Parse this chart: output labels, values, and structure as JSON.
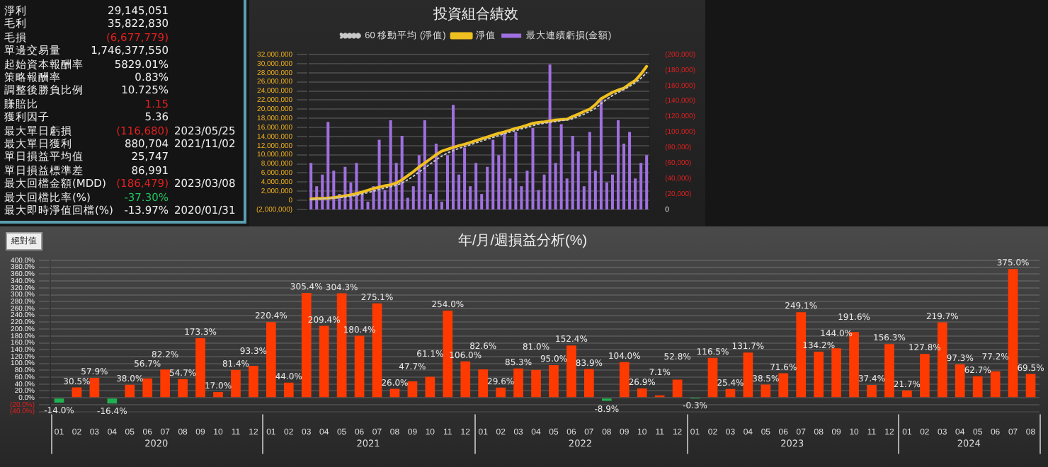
{
  "chart_data": [
    {
      "type": "other",
      "annotations": [
        "淨利 29,145,051",
        "毛利 35,822,830",
        "毛損 (6,677,779)",
        "單邊交易量 1,746,377,550",
        "起始資本報酬率 5829.01%",
        "策略報酬率 0.83%",
        "調整後勝負比例 10.725%",
        "賺賠比 1.15",
        "獲利因子 5.36",
        "最大單日虧損 (116,680) 2023/05/25",
        "最大單日獲利 880,704 2021/11/02",
        "單日損益平均值 25,747",
        "單日損益標準差 86,991",
        "最大回檔金額(MDD) (186,479) 2023/03/08",
        "最大回檔比率(%) -37.30%",
        "最大即時淨值回檔(%) -13.97% 2020/01/31"
      ],
      "colors": [
        "#eeeeee",
        "#eeeeee",
        "#e02020",
        "#eeeeee",
        "#eeeeee",
        "#eeeeee",
        "#eeeeee",
        "#e02020",
        "#eeeeee",
        "#e02020",
        "#eeeeee",
        "#eeeeee",
        "#eeeeee",
        "#e02020",
        "#20c060",
        "#eeeeee"
      ]
    },
    {
      "type": "line",
      "title": "投資組合績效",
      "legend": "top",
      "grid": "y",
      "categories": [
        null,
        null,
        null,
        null,
        null,
        null,
        null,
        null,
        null,
        null,
        null,
        null,
        null,
        null,
        null,
        null,
        null,
        null,
        null,
        null,
        null,
        null,
        null,
        null,
        null,
        null,
        null,
        null,
        null,
        null,
        null,
        null,
        null,
        null,
        null,
        null,
        null,
        null,
        null,
        null,
        null,
        null,
        null,
        null,
        null,
        null,
        null,
        null,
        null,
        null,
        null,
        null,
        null,
        null,
        null,
        null,
        null,
        null,
        null,
        null
      ],
      "series": [
        {
          "name": "最大連續虧損(金額)",
          "type": "bar",
          "axis": "y2",
          "color": "#a070e0",
          "values": [
            -60000,
            -30000,
            -45000,
            -113000,
            -50000,
            -20000,
            -55000,
            -35000,
            -60000,
            -20000,
            -10000,
            -30000,
            -90000,
            -25000,
            -115000,
            -60000,
            -95000,
            -15000,
            -30000,
            -70000,
            -115000,
            -20000,
            -85000,
            -10000,
            -70000,
            -135000,
            -45000,
            -80000,
            -30000,
            -60000,
            -20000,
            -55000,
            -90000,
            -70000,
            -100000,
            -40000,
            -100000,
            -30000,
            -50000,
            -105000,
            -25000,
            -45000,
            -187000,
            -60000,
            -110000,
            -40000,
            -95000,
            -75000,
            -30000,
            -100000,
            -50000,
            -143000,
            -35000,
            -45000,
            -115000,
            -85000,
            -100000,
            -40000,
            -60000,
            -70000
          ]
        },
        {
          "name": "淨值",
          "type": "line",
          "color": "#f0c020",
          "values": [
            300000,
            400000,
            400000,
            500000,
            600000,
            800000,
            1000000,
            1200000,
            1500000,
            1800000,
            2200000,
            2600000,
            2900000,
            3200000,
            3400000,
            3800000,
            4500000,
            5400000,
            6300000,
            7300000,
            8200000,
            9100000,
            10000000,
            10800000,
            11200000,
            11600000,
            12000000,
            12300000,
            12700000,
            13100000,
            13500000,
            13900000,
            14300000,
            14700000,
            15000000,
            15400000,
            15800000,
            16100000,
            16500000,
            16900000,
            17100000,
            17200000,
            17400000,
            17600000,
            17700000,
            17800000,
            18400000,
            18900000,
            19500000,
            20000000,
            21000000,
            22300000,
            23000000,
            23700000,
            24200000,
            24600000,
            25500000,
            26300000,
            27700000,
            29400000
          ]
        },
        {
          "name": "60 移動平均 (淨值)",
          "type": "line",
          "line_style": "dotted",
          "color": "#c8c8c8",
          "values": [
            200000,
            300000,
            300000,
            400000,
            500000,
            600000,
            700000,
            900000,
            1100000,
            1400000,
            1700000,
            2000000,
            2400000,
            2700000,
            3000000,
            3300000,
            3800000,
            4500000,
            5300000,
            6200000,
            7100000,
            8000000,
            8900000,
            9700000,
            10400000,
            10900000,
            11400000,
            11800000,
            12200000,
            12600000,
            13000000,
            13400000,
            13800000,
            14200000,
            14600000,
            15000000,
            15300000,
            15700000,
            16000000,
            16400000,
            16700000,
            16900000,
            17100000,
            17300000,
            17500000,
            17600000,
            17900000,
            18400000,
            18900000,
            19500000,
            20200000,
            21200000,
            22200000,
            23000000,
            23700000,
            24300000,
            25000000,
            25800000,
            26800000,
            28000000
          ]
        }
      ],
      "ylim": [
        -2000000,
        32000000
      ],
      "yticks": [
        {
          "value": -2000000,
          "label": "(2,000,000)"
        },
        {
          "value": 0,
          "label": "0"
        },
        {
          "value": 2000000,
          "label": "2,000,000"
        },
        {
          "value": 4000000,
          "label": "4,000,000"
        },
        {
          "value": 6000000,
          "label": "6,000,000"
        },
        {
          "value": 8000000,
          "label": "8,000,000"
        },
        {
          "value": 10000000,
          "label": "10,000,000"
        },
        {
          "value": 12000000,
          "label": "12,000,000"
        },
        {
          "value": 14000000,
          "label": "14,000,000"
        },
        {
          "value": 16000000,
          "label": "16,000,000"
        },
        {
          "value": 18000000,
          "label": "18,000,000"
        },
        {
          "value": 20000000,
          "label": "20,000,000"
        },
        {
          "value": 22000000,
          "label": "22,000,000"
        },
        {
          "value": 24000000,
          "label": "24,000,000"
        },
        {
          "value": 26000000,
          "label": "26,000,000"
        },
        {
          "value": 28000000,
          "label": "28,000,000"
        },
        {
          "value": 30000000,
          "label": "30,000,000"
        },
        {
          "value": 32000000,
          "label": "32,000,000"
        }
      ],
      "y2lim": [
        0,
        -200000
      ],
      "y2ticks": [
        0,
        {
          "value": -20000,
          "label": "(20,000)"
        },
        {
          "value": -40000,
          "label": "(40,000)"
        },
        {
          "value": -60000,
          "label": "(60,000)"
        },
        {
          "value": -80000,
          "label": "(80,000)"
        },
        {
          "value": -100000,
          "label": "(100,000)"
        },
        {
          "value": -120000,
          "label": "(120,000)"
        },
        {
          "value": -140000,
          "label": "(140,000)"
        },
        {
          "value": -160000,
          "label": "(160,000)"
        },
        {
          "value": -180000,
          "label": "(180,000)"
        },
        {
          "value": -200000,
          "label": "(200,000)"
        }
      ]
    },
    {
      "type": "bar",
      "title": "年/月/週損益分析(%)",
      "grid": "y",
      "categories": [
        "01",
        "02",
        "03",
        "04",
        "05",
        "06",
        "07",
        "08",
        "09",
        "10",
        "11",
        "12",
        "01",
        "02",
        "03",
        "04",
        "05",
        "06",
        "07",
        "08",
        "09",
        "10",
        "11",
        "12",
        "01",
        "02",
        "03",
        "04",
        "05",
        "06",
        "07",
        "08",
        "09",
        "10",
        "11",
        "12",
        "01",
        "02",
        "03",
        "04",
        "05",
        "06",
        "07",
        "08",
        "09",
        "10",
        "11",
        "12",
        "01",
        "02",
        "03",
        "04",
        "05",
        "06",
        "07",
        "08"
      ],
      "values": [
        -14.0,
        30.5,
        57.9,
        -16.4,
        38.0,
        56.7,
        82.2,
        54.7,
        173.3,
        17.0,
        81.4,
        93.3,
        220.4,
        44.0,
        305.4,
        209.4,
        304.3,
        180.4,
        275.1,
        26.0,
        47.7,
        61.1,
        254.0,
        106.0,
        82.6,
        29.6,
        85.3,
        81.0,
        95.0,
        152.4,
        83.9,
        -8.9,
        104.0,
        26.9,
        7.1,
        52.8,
        -0.3,
        116.5,
        25.4,
        131.7,
        38.5,
        71.6,
        249.1,
        134.2,
        144.0,
        191.6,
        37.4,
        156.3,
        21.7,
        127.8,
        219.7,
        97.3,
        62.7,
        77.2,
        375.0,
        69.5
      ],
      "value_labels": [
        "-14.0%",
        "30.5%",
        "57.9%",
        "-16.4%",
        "38.0%",
        "56.7%",
        "82.2%",
        "54.7%",
        "173.3%",
        "17.0%",
        "81.4%",
        "93.3%",
        "220.4%",
        "44.0%",
        "305.4%",
        "209.4%",
        "304.3%",
        "180.4%",
        "275.1%",
        "26.0%",
        "47.7%",
        "61.1%",
        "254.0%",
        "106.0%",
        "82.6%",
        "29.6%",
        "85.3%",
        "81.0%",
        "95.0%",
        "152.4%",
        "83.9%",
        "-8.9%",
        "104.0%",
        "26.9%",
        "7.1%",
        "52.8%",
        "-0.3%",
        "116.5%",
        "25.4%",
        "131.7%",
        "38.5%",
        "71.6%",
        "249.1%",
        "134.2%",
        "144.0%",
        "191.6%",
        "37.4%",
        "156.3%",
        "21.7%",
        "127.8%",
        "219.7%",
        "97.3%",
        "62.7%",
        "77.2%",
        "375.0%",
        "69.5%"
      ],
      "colors": [
        "#20b050",
        "#ff3a00",
        "#ff3a00",
        "#20b050",
        "#ff3a00",
        "#ff3a00",
        "#ff3a00",
        "#ff3a00",
        "#ff3a00",
        "#ff3a00",
        "#ff3a00",
        "#ff3a00",
        "#ff3a00",
        "#ff3a00",
        "#ff3a00",
        "#ff3a00",
        "#ff3a00",
        "#ff3a00",
        "#ff3a00",
        "#ff3a00",
        "#ff3a00",
        "#ff3a00",
        "#ff3a00",
        "#ff3a00",
        "#ff3a00",
        "#ff3a00",
        "#ff3a00",
        "#ff3a00",
        "#ff3a00",
        "#ff3a00",
        "#ff3a00",
        "#20b050",
        "#ff3a00",
        "#ff3a00",
        "#ff3a00",
        "#ff3a00",
        "#20b050",
        "#ff3a00",
        "#ff3a00",
        "#ff3a00",
        "#ff3a00",
        "#ff3a00",
        "#ff3a00",
        "#ff3a00",
        "#ff3a00",
        "#ff3a00",
        "#ff3a00",
        "#ff3a00",
        "#ff3a00",
        "#ff3a00",
        "#ff3a00",
        "#ff3a00",
        "#ff3a00",
        "#ff3a00",
        "#ff3a00",
        "#ff3a00"
      ],
      "ylim": [
        -40,
        400
      ],
      "yticks": [
        {
          "value": -40,
          "label": "(40.0%)"
        },
        {
          "value": -20,
          "label": "(20.0%)"
        },
        {
          "value": 0,
          "label": "0.0%"
        },
        {
          "value": 20,
          "label": "20.0%"
        },
        {
          "value": 40,
          "label": "40.0%"
        },
        {
          "value": 60,
          "label": "60.0%"
        },
        {
          "value": 80,
          "label": "80.0%"
        },
        {
          "value": 100,
          "label": "100.0%"
        },
        {
          "value": 120,
          "label": "120.0%"
        },
        {
          "value": 140,
          "label": "140.0%"
        },
        {
          "value": 160,
          "label": "160.0%"
        },
        {
          "value": 180,
          "label": "180.0%"
        },
        {
          "value": 200,
          "label": "200.0%"
        },
        {
          "value": 220,
          "label": "220.0%"
        },
        {
          "value": 240,
          "label": "240.0%"
        },
        {
          "value": 260,
          "label": "260.0%"
        },
        {
          "value": 280,
          "label": "280.0%"
        },
        {
          "value": 300,
          "label": "300.0%"
        },
        {
          "value": 320,
          "label": "320.0%"
        },
        {
          "value": 340,
          "label": "340.0%"
        },
        {
          "value": 360,
          "label": "360.0%"
        },
        {
          "value": 380,
          "label": "380.0%"
        },
        {
          "value": 400,
          "label": "400.0%"
        }
      ],
      "annotations": [
        "絕對值",
        "2020",
        "2021",
        "2022",
        "2023",
        "2024"
      ]
    }
  ]
}
